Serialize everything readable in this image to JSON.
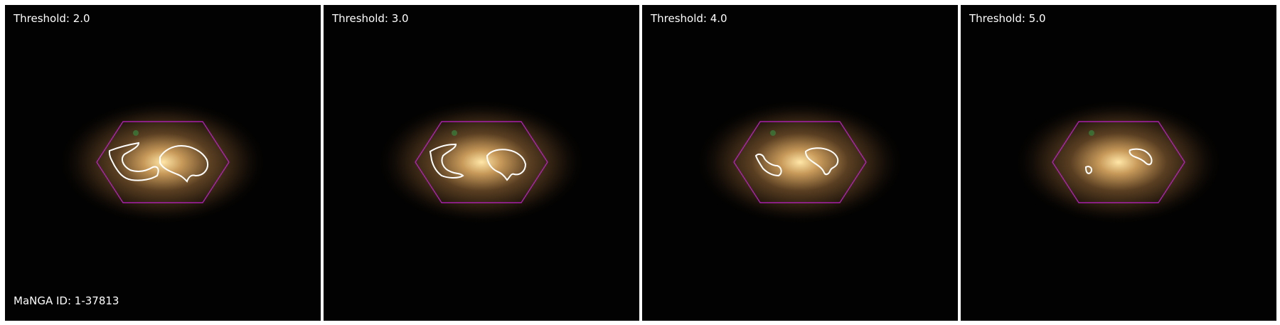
{
  "figure": {
    "manga_id_label": "MaNGA ID: 1-37813",
    "hexagon_color": "#c020c8",
    "contour_color": "#ffffff",
    "panels": [
      {
        "label": "Threshold: 2.0"
      },
      {
        "label": "Threshold: 3.0"
      },
      {
        "label": "Threshold: 4.0"
      },
      {
        "label": "Threshold: 5.0"
      }
    ]
  }
}
